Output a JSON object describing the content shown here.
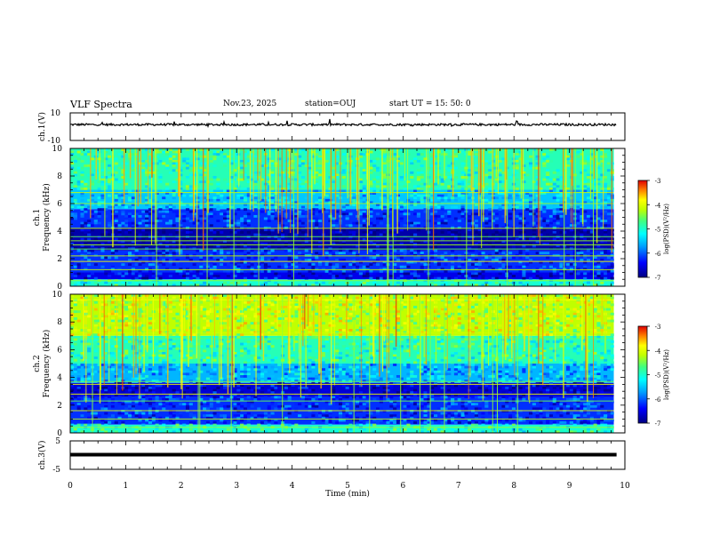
{
  "header": {
    "title": "VLF Spectra",
    "date": "Nov.23, 2025",
    "station": "station=OUJ",
    "start_ut": "start  UT =   15: 50: 0"
  },
  "chart_data": [
    {
      "type": "line",
      "panel": "ch1-waveform",
      "ylabel": "ch.1(V)",
      "ylim": [
        -10,
        10
      ],
      "yticks": [
        "10",
        "-10"
      ],
      "xlim": [
        0,
        10
      ],
      "baseline_v": 1.5,
      "description_series": "dense waveform around +1.5 V with occasional spikes"
    },
    {
      "type": "heatmap",
      "panel": "ch1-spectrogram",
      "ylabel": "ch.1\nFrequency (kHz)",
      "ylabel_line1": "ch.1",
      "ylabel_line2": "Frequency (kHz)",
      "ylim": [
        0,
        10
      ],
      "yticks": [
        "0",
        "2",
        "4",
        "6",
        "8",
        "10"
      ],
      "xlim": [
        0,
        10
      ],
      "data_end_min": 9.8,
      "colorbar": {
        "label": "log(PSD)(V²/Hz)",
        "range": [
          -7,
          -3
        ],
        "ticks": [
          "-3",
          "-4",
          "-5",
          "-6",
          "-7"
        ]
      },
      "bands": [
        {
          "f_lo": 0.0,
          "f_hi": 0.5,
          "level": -5.0
        },
        {
          "f_lo": 0.5,
          "f_hi": 1.0,
          "level": -6.5
        },
        {
          "f_lo": 1.0,
          "f_hi": 2.6,
          "level": -6.2
        },
        {
          "f_lo": 2.6,
          "f_hi": 4.2,
          "level": -6.8
        },
        {
          "f_lo": 4.2,
          "f_hi": 5.6,
          "level": -6.2
        },
        {
          "f_lo": 5.6,
          "f_hi": 7.0,
          "level": -5.5
        },
        {
          "f_lo": 7.0,
          "f_hi": 10.0,
          "level": -4.9
        }
      ],
      "tones_khz": [
        0.4,
        1.2,
        1.8,
        2.2,
        2.7,
        3.0,
        3.3,
        3.6,
        4.2,
        6.0,
        6.8
      ]
    },
    {
      "type": "heatmap",
      "panel": "ch2-spectrogram",
      "ylabel": "ch.2\nFrequency (kHz)",
      "ylabel_line1": "ch.2",
      "ylabel_line2": "Frequency (kHz)",
      "ylim": [
        0,
        10
      ],
      "yticks": [
        "0",
        "2",
        "4",
        "6",
        "8",
        "10"
      ],
      "xlim": [
        0,
        10
      ],
      "data_end_min": 9.8,
      "colorbar": {
        "label": "log(PSD)(V²/Hz)",
        "range": [
          -7,
          -3
        ],
        "ticks": [
          "-3",
          "-4",
          "-5",
          "-6",
          "-7"
        ]
      },
      "bands": [
        {
          "f_lo": 0.0,
          "f_hi": 0.6,
          "level": -5.0
        },
        {
          "f_lo": 0.6,
          "f_hi": 2.6,
          "level": -6.2
        },
        {
          "f_lo": 2.6,
          "f_hi": 3.6,
          "level": -6.6
        },
        {
          "f_lo": 3.6,
          "f_hi": 5.0,
          "level": -5.6
        },
        {
          "f_lo": 5.0,
          "f_hi": 7.0,
          "level": -4.9
        },
        {
          "f_lo": 7.0,
          "f_hi": 10.0,
          "level": -4.2
        }
      ],
      "tones_khz": [
        0.4,
        1.0,
        1.6,
        2.3,
        2.8,
        3.5,
        3.7,
        7.2,
        6.8,
        9.6
      ]
    },
    {
      "type": "line",
      "panel": "ch3-waveform",
      "ylabel": "ch.3(V)",
      "ylim": [
        -5,
        5
      ],
      "yticks": [
        "5",
        "-5"
      ],
      "xlim": [
        0,
        10
      ],
      "baseline_v": 0,
      "xlabel": "Time (min)",
      "xticks": [
        "0",
        "1",
        "2",
        "3",
        "4",
        "5",
        "6",
        "7",
        "8",
        "9",
        "10"
      ]
    }
  ]
}
